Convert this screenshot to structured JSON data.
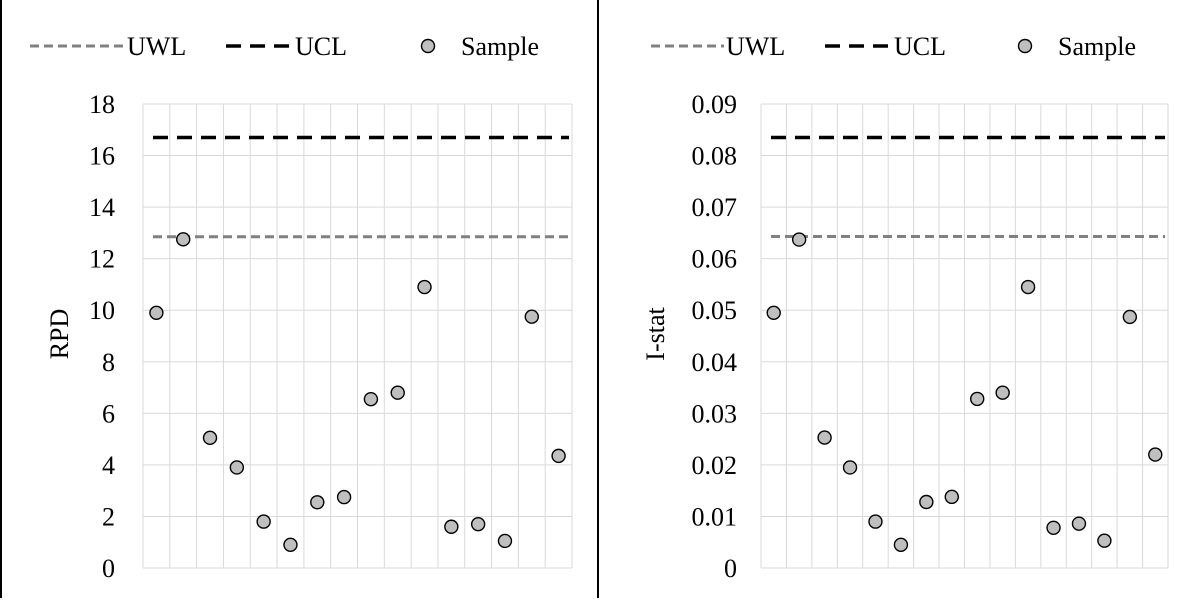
{
  "legend": {
    "uwl_label": "UWL",
    "ucl_label": "UCL",
    "sample_label": "Sample"
  },
  "colors": {
    "uwl": "#808080",
    "ucl": "#000000",
    "marker_fill": "#bfbfbf",
    "marker_stroke": "#000000",
    "grid": "#d9d9d9"
  },
  "chart_data": [
    {
      "type": "scatter",
      "title": "",
      "xlabel": "",
      "ylabel": "RPD",
      "ylim": [
        0,
        18
      ],
      "yticks": [
        0,
        2,
        4,
        6,
        8,
        10,
        12,
        14,
        16,
        18
      ],
      "ytick_labels": [
        "0",
        "2",
        "4",
        "6",
        "8",
        "10",
        "12",
        "14",
        "16",
        "18"
      ],
      "grid": true,
      "legend_position": "top",
      "x": [
        1,
        2,
        3,
        4,
        5,
        6,
        7,
        8,
        9,
        10,
        11,
        12,
        13,
        14,
        15,
        16
      ],
      "series": [
        {
          "name": "UWL",
          "kind": "dashed-line",
          "value": 12.85
        },
        {
          "name": "UCL",
          "kind": "dashed-line",
          "value": 16.7
        },
        {
          "name": "Sample",
          "kind": "marker",
          "values": [
            9.9,
            12.75,
            5.05,
            3.9,
            1.8,
            0.9,
            2.55,
            2.75,
            6.55,
            6.8,
            10.9,
            1.6,
            1.7,
            1.05,
            9.75,
            4.35
          ]
        }
      ]
    },
    {
      "type": "scatter",
      "title": "",
      "xlabel": "",
      "ylabel": "I-stat",
      "ylim": [
        0,
        0.09
      ],
      "yticks": [
        0,
        0.01,
        0.02,
        0.03,
        0.04,
        0.05,
        0.06,
        0.07,
        0.08,
        0.09
      ],
      "ytick_labels": [
        "0",
        "0.01",
        "0.02",
        "0.03",
        "0.04",
        "0.05",
        "0.06",
        "0.07",
        "0.08",
        "0.09"
      ],
      "grid": true,
      "legend_position": "top",
      "x": [
        1,
        2,
        3,
        4,
        5,
        6,
        7,
        8,
        9,
        10,
        11,
        12,
        13,
        14,
        15,
        16
      ],
      "series": [
        {
          "name": "UWL",
          "kind": "dashed-line",
          "value": 0.0643
        },
        {
          "name": "UCL",
          "kind": "dashed-line",
          "value": 0.0835
        },
        {
          "name": "Sample",
          "kind": "marker",
          "values": [
            0.0495,
            0.0637,
            0.0253,
            0.0195,
            0.009,
            0.0045,
            0.0128,
            0.0138,
            0.0328,
            0.034,
            0.0545,
            0.0078,
            0.0086,
            0.0053,
            0.0487,
            0.022
          ]
        }
      ]
    }
  ]
}
